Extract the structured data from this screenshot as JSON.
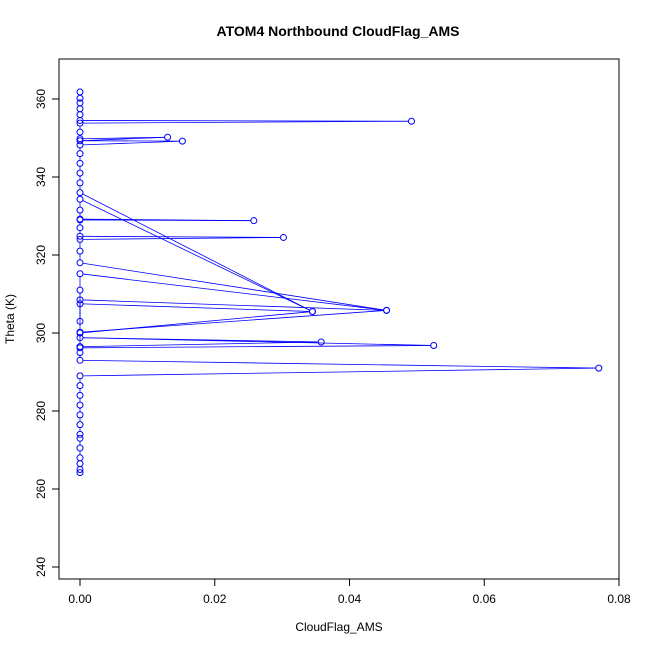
{
  "chart_data": {
    "type": "line",
    "title": "ATOM4 Northbound CloudFlag_AMS",
    "xlabel": "CloudFlag_AMS",
    "ylabel": "Theta (K)",
    "xlim": [
      0,
      0.08
    ],
    "ylim": [
      240,
      370
    ],
    "xticks": [
      "0.00",
      "0.02",
      "0.04",
      "0.06",
      "0.08"
    ],
    "yticks": [
      "240",
      "260",
      "280",
      "300",
      "320",
      "340",
      "360"
    ],
    "grid": false,
    "legend": "none",
    "colors": {
      "series": "#0000ff",
      "axis": "#000000"
    },
    "series": [
      {
        "points": [
          {
            "x": 0,
            "y": 264.2
          },
          {
            "x": 0,
            "y": 265.0
          },
          {
            "x": 0,
            "y": 266.5
          },
          {
            "x": 0,
            "y": 268.0
          },
          {
            "x": 0,
            "y": 270.5
          },
          {
            "x": 0,
            "y": 273.0
          },
          {
            "x": 0,
            "y": 274.0
          },
          {
            "x": 0,
            "y": 276.5
          },
          {
            "x": 0,
            "y": 279.0
          },
          {
            "x": 0,
            "y": 281.5
          },
          {
            "x": 0,
            "y": 284.0
          },
          {
            "x": 0,
            "y": 286.5
          },
          {
            "x": 0,
            "y": 289.0
          },
          {
            "x": 0.077,
            "y": 291.0
          },
          {
            "x": 0,
            "y": 293.0
          },
          {
            "x": 0,
            "y": 295.0
          },
          {
            "x": 0,
            "y": 296.2
          },
          {
            "x": 0.0525,
            "y": 296.8
          },
          {
            "x": 0,
            "y": 298.8
          },
          {
            "x": 0.0358,
            "y": 297.7
          },
          {
            "x": 0,
            "y": 296.5
          },
          {
            "x": 0,
            "y": 300.0
          },
          {
            "x": 0.0345,
            "y": 305.5
          },
          {
            "x": 0,
            "y": 307.5
          },
          {
            "x": 0,
            "y": 303.0
          },
          {
            "x": 0,
            "y": 308.5
          },
          {
            "x": 0.0455,
            "y": 305.8
          },
          {
            "x": 0,
            "y": 300.2
          },
          {
            "x": 0,
            "y": 311.0
          },
          {
            "x": 0,
            "y": 315.2
          },
          {
            "x": 0.0455,
            "y": 305.8
          },
          {
            "x": 0,
            "y": 318.0
          },
          {
            "x": 0,
            "y": 321.0
          },
          {
            "x": 0,
            "y": 324.0
          },
          {
            "x": 0.0302,
            "y": 324.5
          },
          {
            "x": 0,
            "y": 324.8
          },
          {
            "x": 0,
            "y": 327.0
          },
          {
            "x": 0,
            "y": 329.0
          },
          {
            "x": 0.0258,
            "y": 328.8
          },
          {
            "x": 0,
            "y": 329.2
          },
          {
            "x": 0,
            "y": 331.5
          },
          {
            "x": 0,
            "y": 334.3
          },
          {
            "x": 0.0345,
            "y": 305.5
          },
          {
            "x": 0,
            "y": 336.0
          },
          {
            "x": 0,
            "y": 338.5
          },
          {
            "x": 0,
            "y": 341.0
          },
          {
            "x": 0,
            "y": 343.5
          },
          {
            "x": 0,
            "y": 346.0
          },
          {
            "x": 0,
            "y": 348.2
          },
          {
            "x": 0.0152,
            "y": 349.2
          },
          {
            "x": 0,
            "y": 349.3
          },
          {
            "x": 0.013,
            "y": 350.2
          },
          {
            "x": 0,
            "y": 349.8
          },
          {
            "x": 0,
            "y": 351.5
          },
          {
            "x": 0,
            "y": 353.8
          },
          {
            "x": 0.0492,
            "y": 354.3
          },
          {
            "x": 0,
            "y": 354.5
          },
          {
            "x": 0,
            "y": 356.0
          },
          {
            "x": 0,
            "y": 357.5
          },
          {
            "x": 0,
            "y": 359.0
          },
          {
            "x": 0,
            "y": 360.2
          },
          {
            "x": 0,
            "y": 361.8
          }
        ]
      }
    ]
  }
}
